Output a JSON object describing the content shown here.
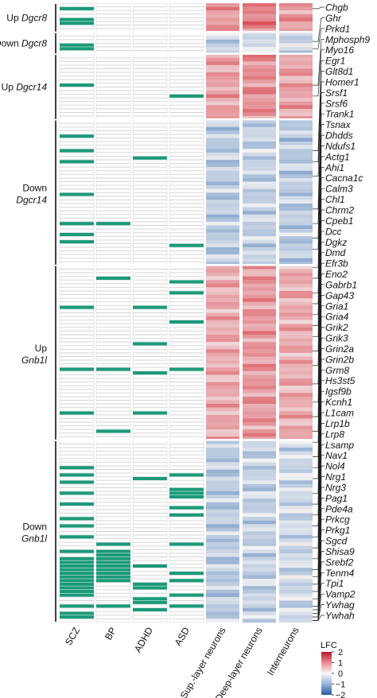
{
  "chart_data": {
    "type": "heatmap",
    "row_count": 170,
    "groups": [
      {
        "direction": "Up",
        "gene": "Dgcr8",
        "rows": [
          0,
          7
        ]
      },
      {
        "direction": "Down",
        "gene": "Dgcr8",
        "rows": [
          8,
          13
        ]
      },
      {
        "direction": "Up",
        "gene": "Dgcr14",
        "rows": [
          14,
          31
        ]
      },
      {
        "direction": "Down",
        "gene": "Dgcr14",
        "rows": [
          32,
          71
        ]
      },
      {
        "direction": "Up",
        "gene": "Gnb1l",
        "rows": [
          72,
          119
        ]
      },
      {
        "direction": "Down",
        "gene": "Gnb1l",
        "rows": [
          120,
          169
        ]
      }
    ],
    "disorders": [
      "SCZ",
      "BP",
      "ADHD",
      "ASD"
    ],
    "neuron_types": [
      "Sup.-layer neurons",
      "Deep-layer neurons",
      "Interneurons"
    ],
    "highlight_color": "#1a9a78",
    "membership": {
      "SCZ": [
        1,
        4,
        5,
        11,
        12,
        22,
        36,
        40,
        43,
        52,
        60,
        63,
        65,
        83,
        100,
        112,
        127,
        129,
        131,
        134,
        137,
        141,
        143,
        146,
        150,
        152,
        153,
        154,
        155,
        156,
        157,
        158,
        159,
        160,
        161,
        162,
        165,
        167,
        168
      ],
      "BP": [
        60,
        75,
        100,
        117,
        148,
        150,
        151,
        152,
        153,
        154,
        155,
        156,
        157,
        158,
        165
      ],
      "ADHD": [
        42,
        83,
        93,
        101,
        112,
        130,
        154,
        159,
        160,
        163,
        164,
        166
      ],
      "ASD": [
        25,
        66,
        76,
        79,
        87,
        100,
        129,
        133,
        134,
        135,
        138,
        140,
        148,
        156,
        158,
        162,
        165
      ],
      "unit": "row index"
    },
    "lfc_scale": {
      "label": "LFC",
      "min": -2,
      "max": 2,
      "ticks": [
        2,
        1,
        0,
        -1,
        -2
      ],
      "low_color": "#3c6fb3",
      "mid_color": "#f3f3f3",
      "high_color": "#d9414c"
    },
    "lfc_anchors": [
      {
        "row": 1,
        "values": [
          1.0,
          1.3,
          1.0
        ]
      },
      {
        "row": 8,
        "values": [
          -0.5,
          -0.3,
          -0.4
        ]
      },
      {
        "row": 20,
        "values": [
          0.9,
          1.1,
          0.9
        ]
      },
      {
        "row": 52,
        "values": [
          -0.6,
          -0.5,
          -0.6
        ]
      },
      {
        "row": 96,
        "values": [
          0.8,
          1.0,
          0.8
        ]
      },
      {
        "row": 145,
        "values": [
          -0.6,
          -0.5,
          -0.4
        ]
      }
    ],
    "gene_labels": [
      {
        "label": "Chgb",
        "row": 1
      },
      {
        "label": "Ghr",
        "row": 10
      },
      {
        "label": "Prkd1",
        "row": 12
      },
      {
        "label": "Mphosph9",
        "row": 22
      },
      {
        "label": "Myo16",
        "row": 25
      },
      {
        "label": "Egr1",
        "row": 40
      },
      {
        "label": "Glt8d1",
        "row": 43
      },
      {
        "label": "Homer1",
        "row": 47
      },
      {
        "label": "Srsf1",
        "row": 56
      },
      {
        "label": "Srsf6",
        "row": 60
      },
      {
        "label": "Trank1",
        "row": 64
      },
      {
        "label": "Tsnax",
        "row": 67
      },
      {
        "label": "Dhdds",
        "row": 72
      },
      {
        "label": "Ndufs1",
        "row": 75
      },
      {
        "label": "Actg1",
        "row": 79
      },
      {
        "label": "Ahi1",
        "row": 82
      },
      {
        "label": "Cacna1c",
        "row": 85
      },
      {
        "label": "Calm3",
        "row": 88
      },
      {
        "label": "Chl1",
        "row": 91
      },
      {
        "label": "Chrm2",
        "row": 95
      },
      {
        "label": "Cpeb1",
        "row": 99
      },
      {
        "label": "Dcc",
        "row": 104
      },
      {
        "label": "Dgkz",
        "row": 109
      },
      {
        "label": "Dmd",
        "row": 113
      },
      {
        "label": "Efr3b",
        "row": 117
      },
      {
        "label": "Eno2",
        "row": 120
      },
      {
        "label": "Gabrb1",
        "row": 124
      },
      {
        "label": "Gap43",
        "row": 127
      },
      {
        "label": "Gria1",
        "row": 130
      },
      {
        "label": "Gria4",
        "row": 134
      },
      {
        "label": "Grik2",
        "row": 137
      },
      {
        "label": "Grik3",
        "row": 140
      },
      {
        "label": "Grin2a",
        "row": 143
      },
      {
        "label": "Grin2b",
        "row": 146
      },
      {
        "label": "Grm8",
        "row": 149
      },
      {
        "label": "Hs3st5",
        "row": 152
      },
      {
        "label": "Igsf9b",
        "row": 155
      },
      {
        "label": "Kcnh1",
        "row": 157
      },
      {
        "label": "L1cam",
        "row": 159
      },
      {
        "label": "Lrp1b",
        "row": 161
      },
      {
        "label": "Lrp8",
        "row": 163
      },
      {
        "label": "Lsamp",
        "row": 165
      },
      {
        "label": "Nav1",
        "row": 166
      },
      {
        "label": "Nol4",
        "row": 167
      },
      {
        "label": "Nrg1",
        "row": 168
      },
      {
        "label": "Nrg3",
        "row": 168
      },
      {
        "label": "Pag1",
        "row": 169
      },
      {
        "label": "Pde4a",
        "row": 169
      },
      {
        "label": "Prkcg",
        "row": 169
      },
      {
        "label": "Prkg1",
        "row": 169
      },
      {
        "label": "Sgcd",
        "row": 169
      },
      {
        "label": "Shisa9",
        "row": 169
      },
      {
        "label": "Srebf2",
        "row": 169
      },
      {
        "label": "Tenm4",
        "row": 169
      },
      {
        "label": "Tpi1",
        "row": 169
      },
      {
        "label": "Vamp2",
        "row": 169
      },
      {
        "label": "Ywhag",
        "row": 169
      },
      {
        "label": "Ywhah",
        "row": 169
      }
    ]
  }
}
